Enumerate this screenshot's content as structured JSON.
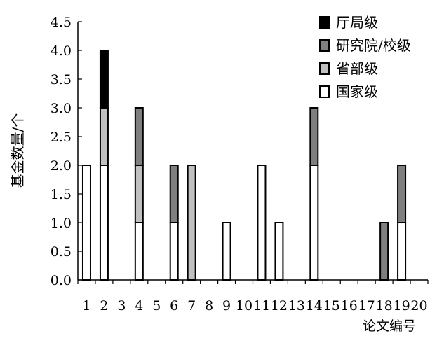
{
  "chart_data": {
    "type": "bar",
    "stacked": true,
    "xlabel": "论文编号",
    "ylabel": "基金数量/个",
    "categories": [
      "1",
      "2",
      "3",
      "4",
      "5",
      "6",
      "7",
      "8",
      "9",
      "10",
      "11",
      "12",
      "13",
      "14",
      "15",
      "16",
      "17",
      "18",
      "19",
      "20"
    ],
    "ylim": [
      0,
      4.5
    ],
    "yticks": [
      0.0,
      0.5,
      1.0,
      1.5,
      2.0,
      2.5,
      3.0,
      3.5,
      4.0,
      4.5
    ],
    "ytick_labels": [
      "0.0",
      "0.5",
      "1.0",
      "1.5",
      "2.0",
      "2.5",
      "3.0",
      "3.5",
      "4.0",
      "4.5"
    ],
    "grid": false,
    "legend_position": "top-right",
    "series": [
      {
        "name": "国家级",
        "color": "#ffffff",
        "values": [
          2,
          2,
          0,
          1,
          0,
          1,
          0,
          0,
          1,
          0,
          2,
          1,
          0,
          2,
          0,
          0,
          0,
          0,
          1,
          0
        ]
      },
      {
        "name": "省部级",
        "color": "#c0c0c0",
        "values": [
          0,
          1,
          0,
          1,
          0,
          0,
          2,
          0,
          0,
          0,
          0,
          0,
          0,
          0,
          0,
          0,
          0,
          0,
          0,
          0
        ]
      },
      {
        "name": "研究院/校级",
        "color": "#7f7f7f",
        "values": [
          0,
          0,
          0,
          1,
          0,
          1,
          0,
          0,
          0,
          0,
          0,
          0,
          0,
          1,
          0,
          0,
          0,
          1,
          1,
          0
        ]
      },
      {
        "name": "厅局级",
        "color": "#000000",
        "values": [
          0,
          1,
          0,
          0,
          0,
          0,
          0,
          0,
          0,
          0,
          0,
          0,
          0,
          0,
          0,
          0,
          0,
          0,
          0,
          0
        ]
      }
    ],
    "legend_order": [
      "厅局级",
      "研究院/校级",
      "省部级",
      "国家级"
    ]
  }
}
